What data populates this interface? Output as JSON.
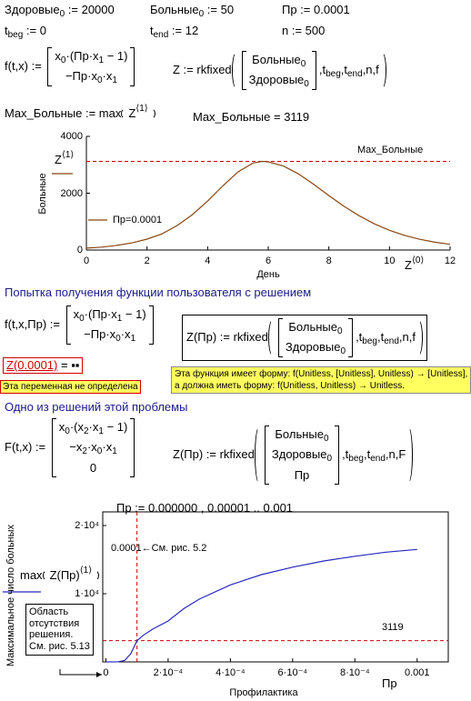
{
  "expressions": [
    [
      "Здоровые",
      {
        "sub": "0"
      },
      " := 20000"
    ],
    [
      "Больные",
      {
        "sub": "0"
      },
      " := 50"
    ],
    [
      "Пр := 0.0001"
    ],
    [
      "t",
      {
        "sub": "beg"
      },
      " := 0"
    ],
    [
      "t",
      {
        "sub": "end"
      },
      " := 12"
    ],
    [
      "n := 500"
    ],
    [
      "f(t,x) := ",
      {
        "matrix": [
          [
            "x",
            {
              "sub": "0"
            },
            "·(Пр·x",
            {
              "sub": "1"
            },
            " − 1)"
          ],
          [
            "−Пр·x",
            {
              "sub": "0"
            },
            "·x",
            {
              "sub": "1"
            }
          ]
        ]
      }
    ],
    [
      "Z := rkfixed",
      {
        "group": [
          {
            "matrix": [
              [
                "Больные",
                {
                  "sub": "0"
                }
              ],
              [
                "Здоровые",
                {
                  "sub": "0"
                }
              ]
            ]
          },
          ",t",
          {
            "sub": "beg"
          },
          ",t",
          {
            "sub": "end"
          },
          ",n,f"
        ]
      }
    ],
    [
      "Max_Больные := max",
      {
        "group": [
          "Z",
          {
            "sup": "⟨1⟩"
          }
        ]
      }
    ],
    [
      "Max_Больные = 3119"
    ],
    [
      "f(t,x,Пр) := ",
      {
        "matrix": [
          [
            "x",
            {
              "sub": "0"
            },
            "·(Пр·x",
            {
              "sub": "1"
            },
            " − 1)"
          ],
          [
            "−Пр·x",
            {
              "sub": "0"
            },
            "·x",
            {
              "sub": "1"
            }
          ]
        ]
      }
    ],
    [
      "Z(Пр) := rkfixed",
      {
        "group": [
          {
            "matrix": [
              [
                "Больные",
                {
                  "sub": "0"
                }
              ],
              [
                "Здоровые",
                {
                  "sub": "0"
                }
              ]
            ]
          },
          ",t",
          {
            "sub": "beg"
          },
          ",t",
          {
            "sub": "end"
          },
          ",n,f"
        ]
      }
    ],
    [
      "Z(0.0001)",
      " = ",
      "▪▪"
    ],
    [
      "F(t,x) := ",
      {
        "matrix": [
          [
            "x",
            {
              "sub": "0"
            },
            "·(x",
            {
              "sub": "2"
            },
            "·x",
            {
              "sub": "1"
            },
            " − 1)"
          ],
          [
            "−x",
            {
              "sub": "2"
            },
            "·x",
            {
              "sub": "0"
            },
            "·x",
            {
              "sub": "1"
            }
          ],
          [
            "0"
          ]
        ]
      }
    ],
    [
      "Z(Пр) := rkfixed",
      {
        "group": [
          {
            "matrix": [
              [
                "Больные",
                {
                  "sub": "0"
                }
              ],
              [
                "Здоровые",
                {
                  "sub": "0"
                }
              ],
              [
                "Пр"
              ]
            ]
          },
          ",t",
          {
            "sub": "beg"
          },
          ",t",
          {
            "sub": "end"
          },
          ",n,F"
        ]
      }
    ],
    [
      "Пр := 0.000000 , 0.00001 .. 0.001"
    ]
  ],
  "headings": [
    "Попытка получения функции пользователя с решением",
    "Одно из решений этой проблемы"
  ],
  "tooltip": [
    "Эта функция имеет форму: f(Unitless, [Unitless], Unitless) → [Unitless],",
    "а должна иметь форму: f(Unitless, Unitless) → Unitless."
  ],
  "error_message": "Эта переменная не определена",
  "chart_data": [
    {
      "type": "line",
      "x": [
        0,
        0.5,
        1,
        1.5,
        2,
        2.5,
        3,
        3.5,
        4,
        4.5,
        5,
        5.5,
        5.8,
        6,
        6.5,
        7,
        7.5,
        8,
        8.5,
        9,
        9.5,
        10,
        10.5,
        11,
        11.5,
        12
      ],
      "series": [
        {
          "name": "Пр=0.0001",
          "color": "#8b4513",
          "values": [
            67,
            104,
            162,
            250,
            384,
            570,
            864,
            1248,
            1722,
            2255,
            2748,
            3063,
            3119,
            3105,
            2958,
            2680,
            2310,
            1918,
            1538,
            1208,
            922,
            695,
            516,
            379,
            276,
            202
          ]
        }
      ],
      "xlim": [
        0,
        12
      ],
      "xticks": [
        0,
        2,
        4,
        6,
        8,
        10,
        12
      ],
      "ylim": [
        0,
        4000
      ],
      "yticks": [
        0,
        2000,
        4000
      ],
      "y_label": "Больные",
      "x_label": "День",
      "trace_y_label": [
        "Z",
        {
          "sup": "⟨1⟩"
        }
      ],
      "trace_x_label": [
        "Z",
        {
          "sup": "⟨0⟩"
        }
      ],
      "hlines": [
        {
          "value": 3119,
          "label": "Max_Больные",
          "color": "#cc0000"
        }
      ],
      "legend": true,
      "frame": false
    },
    {
      "type": "line",
      "x": [
        0,
        4e-05,
        6e-05,
        8e-05,
        0.0001,
        0.00012,
        0.00015,
        0.0002,
        0.00025,
        0.0003,
        0.0004,
        0.0005,
        0.0006,
        0.0007,
        0.0008,
        0.0009,
        0.001
      ],
      "series": [
        {
          "color": "#2828c0",
          "values": [
            0,
            20,
            200,
            1200,
            3119,
            3900,
            4800,
            6000,
            7800,
            9200,
            11300,
            12800,
            13900,
            14800,
            15500,
            16100,
            16500
          ]
        }
      ],
      "xlim": [
        -1e-05,
        0.0011
      ],
      "xticks": [
        0,
        {
          "value": 0.0002,
          "label": "2·10⁻⁴"
        },
        {
          "value": 0.0004,
          "label": "4·10⁻⁴"
        },
        {
          "value": 0.0006,
          "label": "6·10⁻⁴"
        },
        {
          "value": 0.0008,
          "label": "8·10⁻⁴"
        },
        0.001
      ],
      "ylim": [
        0,
        22000
      ],
      "yticks": [
        {
          "value": 10000,
          "label": "1·10⁴"
        },
        {
          "value": 20000,
          "label": "2·10⁴"
        }
      ],
      "y_label": "Максимальное число больных",
      "x_label": "Профилактика",
      "trace_y_label": [
        "max",
        {
          "group": [
            "Z(Пр)",
            {
              "sup": "⟨1⟩"
            }
          ]
        }
      ],
      "trace_x_label": [
        "Пр"
      ],
      "hlines": [
        {
          "value": 3119,
          "label": "3119",
          "color": "#cc0000"
        }
      ],
      "vlines": [
        {
          "value": 0.0001,
          "label": "0.0001←См. рис. 5.2",
          "color": "#cc0000"
        }
      ],
      "note": [
        "Область",
        "отсутствия",
        "решения.",
        "См. рис. 5.13"
      ],
      "legend": false,
      "frame": true
    }
  ]
}
